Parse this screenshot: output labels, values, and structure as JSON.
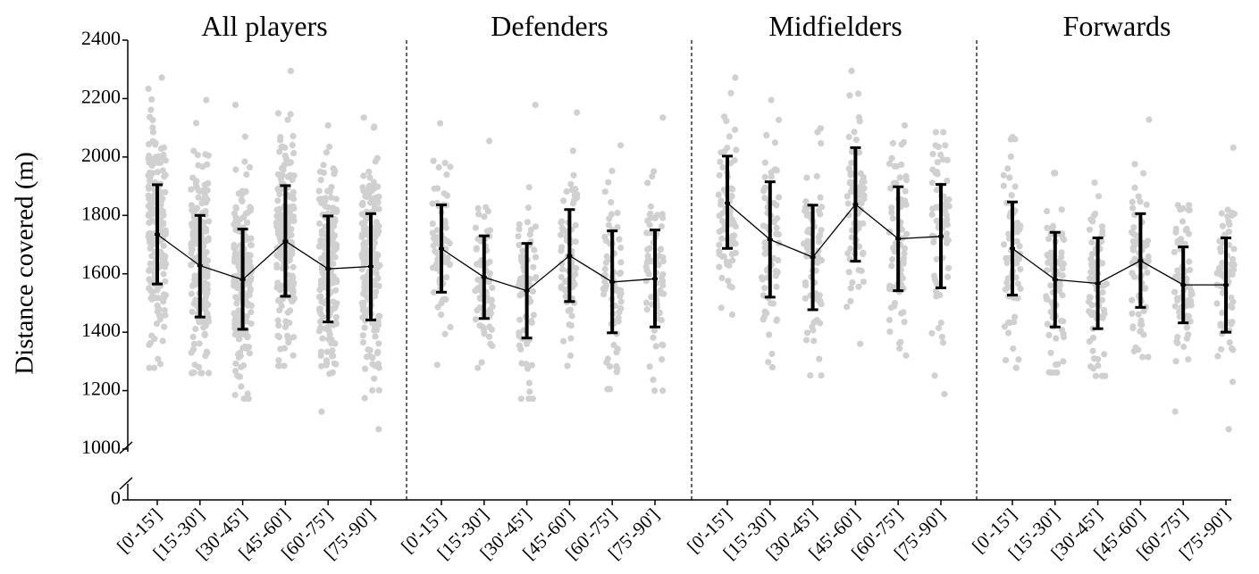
{
  "chart_data": {
    "type": "scatter",
    "ylabel": "Distance covered (m)",
    "yticks": [
      0,
      1000,
      1200,
      1400,
      1600,
      1800,
      2000,
      2200,
      2400
    ],
    "ylim": [
      1000,
      2400
    ],
    "y_axis_break": [
      0,
      1000
    ],
    "grid": false,
    "categories": [
      "[0'-15']",
      "[15'-30']",
      "[30'-45']",
      "[45'-60']",
      "[60'-75']",
      "[75'-90']"
    ],
    "colors": {
      "points": "#d0d0d0",
      "summary": "#000000",
      "divider": "#000000"
    },
    "panels": [
      {
        "title": "All players",
        "mean": [
          1735,
          1628,
          1580,
          1712,
          1617,
          1625
        ],
        "sd_lower": [
          1565,
          1452,
          1410,
          1523,
          1435,
          1442
        ],
        "sd_upper": [
          1905,
          1800,
          1753,
          1902,
          1798,
          1806
        ],
        "range_min": [
          1278,
          1260,
          1172,
          1285,
          1128,
          1068
        ],
        "range_max": [
          2272,
          2195,
          2178,
          2295,
          2108,
          2135
        ]
      },
      {
        "title": "Defenders",
        "mean": [
          1686,
          1588,
          1542,
          1662,
          1572,
          1583
        ],
        "sd_lower": [
          1537,
          1447,
          1380,
          1505,
          1398,
          1418
        ],
        "sd_upper": [
          1836,
          1730,
          1704,
          1820,
          1747,
          1750
        ],
        "range_min": [
          1288,
          1278,
          1172,
          1285,
          1205,
          1200
        ],
        "range_max": [
          2115,
          2055,
          2178,
          2152,
          2040,
          2135
        ]
      },
      {
        "title": "Midfielders",
        "mean": [
          1842,
          1717,
          1657,
          1838,
          1720,
          1728
        ],
        "sd_lower": [
          1687,
          1520,
          1477,
          1643,
          1542,
          1552
        ],
        "sd_upper": [
          2003,
          1915,
          1835,
          2032,
          1898,
          1906
        ],
        "range_min": [
          1460,
          1280,
          1252,
          1360,
          1320,
          1188
        ],
        "range_max": [
          2272,
          2195,
          2098,
          2295,
          2108,
          2085
        ]
      },
      {
        "title": "Forwards",
        "mean": [
          1687,
          1580,
          1567,
          1645,
          1562,
          1562
        ],
        "sd_lower": [
          1527,
          1418,
          1412,
          1485,
          1432,
          1400
        ],
        "sd_upper": [
          1846,
          1742,
          1723,
          1806,
          1692,
          1723
        ],
        "range_min": [
          1278,
          1262,
          1250,
          1315,
          1128,
          1068
        ],
        "range_max": [
          2068,
          1945,
          1912,
          2128,
          1835,
          2032
        ]
      }
    ]
  }
}
